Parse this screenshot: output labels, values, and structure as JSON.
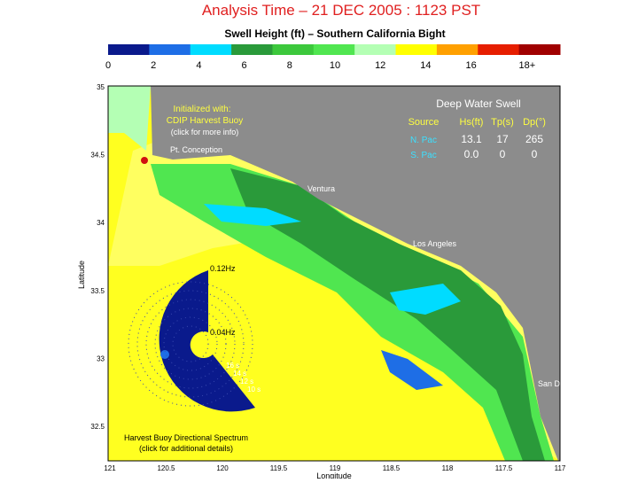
{
  "header": {
    "title": "Analysis Time – 21 DEC 2005 : 1123 PST",
    "subtitle": "Swell Height (ft) – Southern California Bight"
  },
  "colorbar": {
    "colors": [
      "#0a1a8c",
      "#1e6ee6",
      "#00dcff",
      "#2a9a3a",
      "#3cc83c",
      "#50e650",
      "#b4ffb4",
      "#ffff00",
      "#ffa000",
      "#e61e00",
      "#a00000"
    ],
    "labels": [
      "0",
      "2",
      "4",
      "6",
      "8",
      "10",
      "12",
      "14",
      "16",
      "18+"
    ]
  },
  "map": {
    "yticks": [
      "35",
      "34.5",
      "34",
      "33.5",
      "33",
      "32.5"
    ],
    "xticks": [
      "121",
      "120.5",
      "120",
      "119.5",
      "119",
      "118.5",
      "118",
      "117.5",
      "117"
    ],
    "ylabel": "Latitude",
    "xlabel": "Longitude",
    "places": [
      "Pt. Conception",
      "Ventura",
      "Los Angeles",
      "San Diego"
    ]
  },
  "buoy": {
    "lines": [
      "Initialized with:",
      "CDIP Harvest Buoy",
      "(click for more info)"
    ]
  },
  "swell": {
    "title": "Deep Water Swell",
    "header": [
      "Source",
      "Hs(ft)",
      "Tp(s)",
      "Dp(°)"
    ],
    "rows": [
      [
        "N. Pac",
        "13.1",
        "17",
        "265"
      ],
      [
        "S. Pac",
        "0.0",
        "0",
        "0"
      ]
    ]
  },
  "spectrum": {
    "freq_labels": [
      "0.12Hz",
      "0.04Hz"
    ],
    "period_labels": [
      "16 s",
      "14 s",
      "12 s",
      "10 s"
    ],
    "caption": [
      "Harvest Buoy Directional Spectrum",
      "(click for additional details)"
    ]
  }
}
